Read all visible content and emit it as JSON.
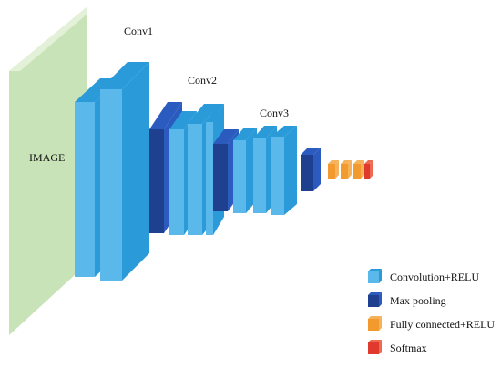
{
  "labels": {
    "image": "IMAGE",
    "conv1": "Conv1",
    "conv2": "Conv2",
    "conv3": "Conv3"
  },
  "legend": [
    {
      "label": "Convolution+RELU",
      "color": "#5bb8ea"
    },
    {
      "label": "Max pooling",
      "color": "#1f3f8f"
    },
    {
      "label": "Fully connected+RELU",
      "color": "#f39a2e"
    },
    {
      "label": "Softmax",
      "color": "#e03a2f"
    }
  ],
  "colors": {
    "image_front": "#c9e3b8",
    "image_top": "#e3f1d8",
    "conv_front": "#5bb8ea",
    "conv_side": "#2a9ad8",
    "pool_front": "#1f3f8f",
    "pool_side": "#2c5bc0",
    "fc_front": "#f39a2e",
    "fc_side": "#f6b25a",
    "softmax_front": "#e03a2f",
    "softmax_side": "#ec6a52"
  }
}
